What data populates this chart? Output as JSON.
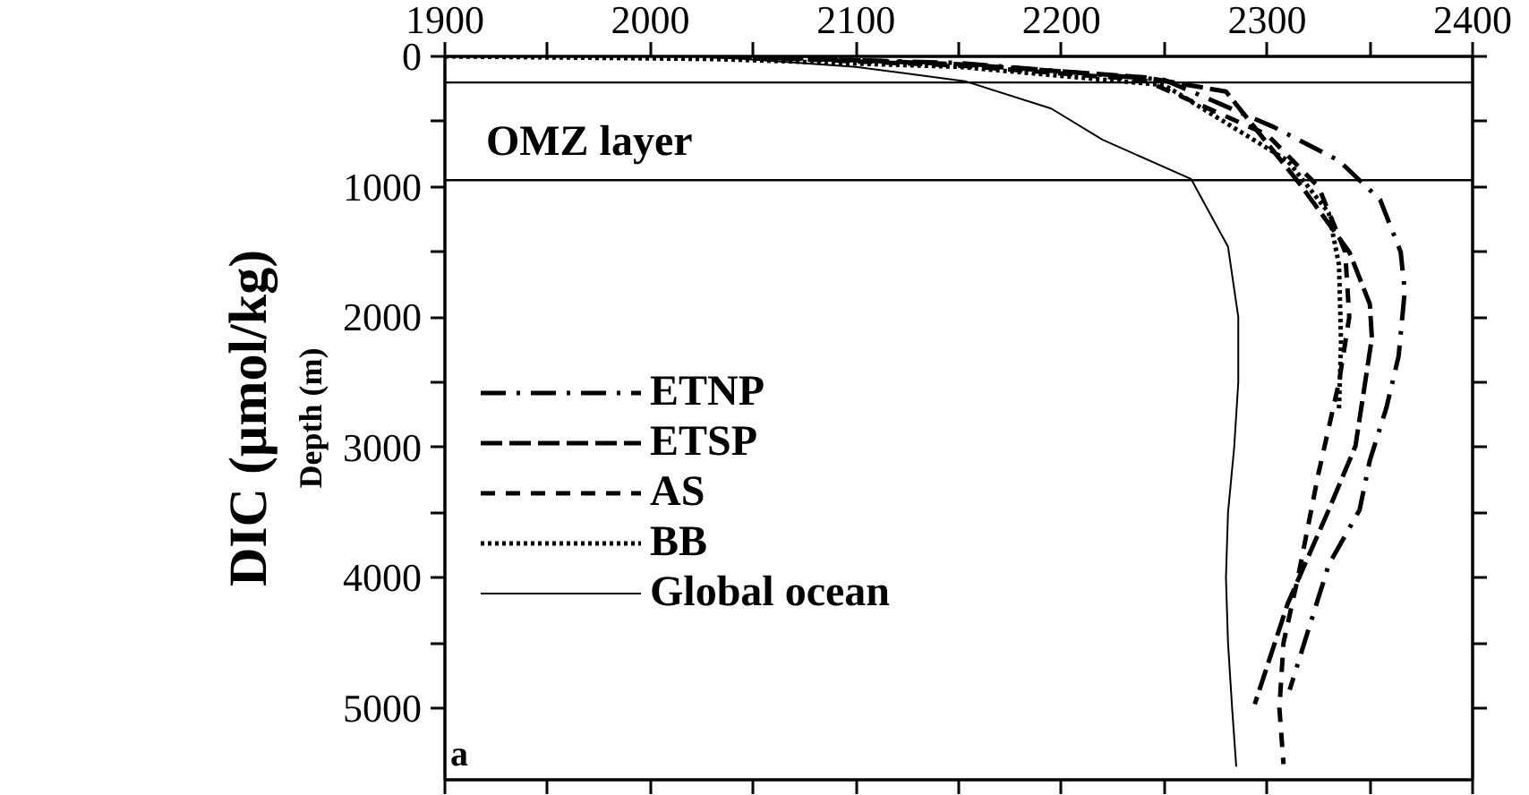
{
  "chart_data": {
    "type": "line",
    "ylabel": "Depth (m)",
    "xlim": [
      1900,
      2400
    ],
    "ylim": [
      5550,
      0
    ],
    "xticks": [
      1900,
      {
        "value": 1950,
        "label": null
      },
      2000,
      {
        "value": 2050,
        "label": null
      },
      2100,
      {
        "value": 2150,
        "label": null
      },
      2200,
      {
        "value": 2250,
        "label": null
      },
      2300,
      {
        "value": 2350,
        "label": null
      },
      2400
    ],
    "yticks": [
      0,
      {
        "value": 500,
        "label": null
      },
      1000,
      {
        "value": 1500,
        "label": null
      },
      2000,
      {
        "value": 2500,
        "label": null
      },
      3000,
      {
        "value": 3500,
        "label": null
      },
      4000,
      {
        "value": 4500,
        "label": null
      },
      5000
    ],
    "grid": false,
    "legend": "left",
    "ref_lines": [
      {
        "axis": "y",
        "value": 200,
        "label": null
      },
      {
        "axis": "y",
        "value": 950,
        "label": "OMZ layer"
      }
    ],
    "annotations": [
      "DIC (µmol/kg)",
      "a"
    ],
    "series": [
      {
        "name": "ETNP",
        "color": "#000000",
        "line_style": "dashdot",
        "x": [
          2030,
          2150,
          2250,
          2303,
          2335,
          2355,
          2365,
          2367,
          2364,
          2358,
          2350,
          2345,
          2330,
          2311
        ],
        "values": [
          0,
          50,
          180,
          540,
          800,
          1100,
          1500,
          1800,
          2300,
          2700,
          3100,
          3480,
          3900,
          4860
        ]
      },
      {
        "name": "ETSP",
        "color": "#000000",
        "line_style": "longdash",
        "x": [
          2050,
          2150,
          2240,
          2280,
          2316,
          2340,
          2350,
          2351,
          2343,
          2330,
          2310,
          2294
        ],
        "values": [
          0,
          60,
          160,
          270,
          980,
          1500,
          1900,
          2160,
          2990,
          3480,
          4200,
          4970
        ]
      },
      {
        "name": "AS",
        "color": "#000000",
        "line_style": "dashed",
        "x": [
          2040,
          2150,
          2240,
          2300,
          2325,
          2338,
          2340,
          2335,
          2325,
          2315,
          2308,
          2306,
          2308
        ],
        "values": [
          0,
          70,
          180,
          600,
          1000,
          1500,
          2000,
          2500,
          3200,
          4000,
          4500,
          5000,
          5430
        ]
      },
      {
        "name": "BB",
        "color": "#000000",
        "line_style": "dotted",
        "x": [
          1900,
          2030,
          2150,
          2250,
          2310,
          2330,
          2335,
          2336,
          2335
        ],
        "values": [
          0,
          20,
          80,
          220,
          800,
          1200,
          1600,
          2200,
          2700
        ]
      },
      {
        "name": "Global ocean",
        "color": "#000000",
        "line_style": "solid",
        "x": [
          2028,
          2100,
          2153,
          2195,
          2220,
          2263,
          2281,
          2286,
          2286,
          2284,
          2281,
          2280,
          2281,
          2283,
          2285
        ],
        "values": [
          0,
          80,
          190,
          400,
          640,
          940,
          1460,
          2000,
          2500,
          3000,
          3500,
          4000,
          4500,
          5000,
          5450
        ]
      }
    ]
  }
}
